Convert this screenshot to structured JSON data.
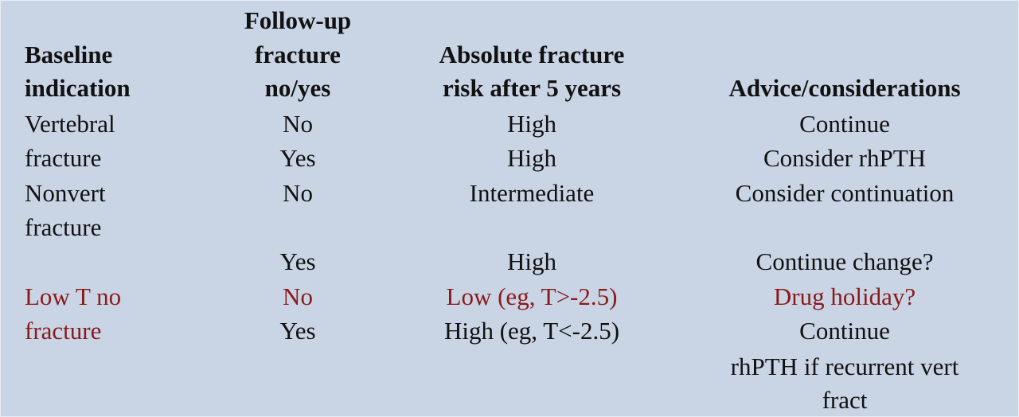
{
  "header": {
    "col1": [
      "Baseline",
      "indication"
    ],
    "col2": [
      "Follow-up",
      "fracture",
      "no/yes"
    ],
    "col3": [
      "Absolute fracture",
      "risk after 5 years"
    ],
    "col4": [
      "Advice/considerations"
    ]
  },
  "rows": [
    {
      "indication": [
        "Vertebral",
        "fracture"
      ],
      "entries": [
        {
          "followup": "No",
          "risk": "High",
          "advice": [
            "Continue"
          ]
        },
        {
          "followup": "Yes",
          "risk": "High",
          "advice": [
            "Consider rhPTH"
          ]
        }
      ]
    },
    {
      "indication": [
        "Nonvert",
        "fracture"
      ],
      "entries": [
        {
          "followup": "No",
          "risk": "Intermediate",
          "advice": [
            "Consider continuation"
          ]
        },
        {
          "followup": "Yes",
          "risk": "High",
          "advice": [
            "Continue change?"
          ]
        }
      ]
    },
    {
      "indication": [
        "Low T no",
        "fracture"
      ],
      "entries": [
        {
          "followup": "No",
          "risk": "Low (eg, T>-2.5)",
          "advice": [
            "Drug holiday?"
          ]
        },
        {
          "followup": "Yes",
          "risk": "High (eg, T<-2.5)",
          "advice": [
            "Continue",
            "rhPTH if recurrent vert",
            "fract"
          ]
        }
      ]
    }
  ],
  "colors": {
    "background": "#c9d4e5",
    "highlight": "#8b1a1a",
    "text": "#111111"
  }
}
